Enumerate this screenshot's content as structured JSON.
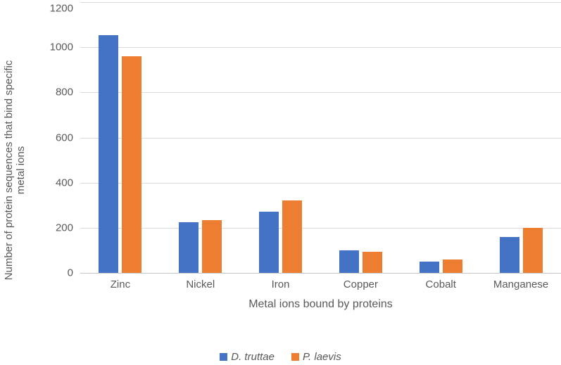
{
  "chart_data": {
    "type": "bar",
    "title": "",
    "categories": [
      "Zinc",
      "Nickel",
      "Iron",
      "Copper",
      "Cobalt",
      "Manganese"
    ],
    "series": [
      {
        "name": "D. truttae",
        "color": "#4472C4",
        "values": [
          1055,
          225,
          270,
          100,
          50,
          160
        ]
      },
      {
        "name": "P. laevis",
        "color": "#ED7D31",
        "values": [
          960,
          235,
          320,
          95,
          60,
          200
        ]
      }
    ],
    "xlabel": "Metal ions bound by proteins",
    "ylabel": "Number of protein sequences that bind specific metal ions",
    "ylabel_lines": [
      "Number of protein sequences that bind specific",
      "metal ions"
    ],
    "ylim": [
      0,
      1200
    ],
    "yticks": [
      0,
      200,
      400,
      600,
      800,
      1000,
      1200
    ],
    "grid": true,
    "legend_position": "bottom"
  },
  "colors": {
    "grid": "#D9D9D9",
    "axis": "#C6C6C6",
    "text": "#595959",
    "background": "#FFFFFF"
  }
}
